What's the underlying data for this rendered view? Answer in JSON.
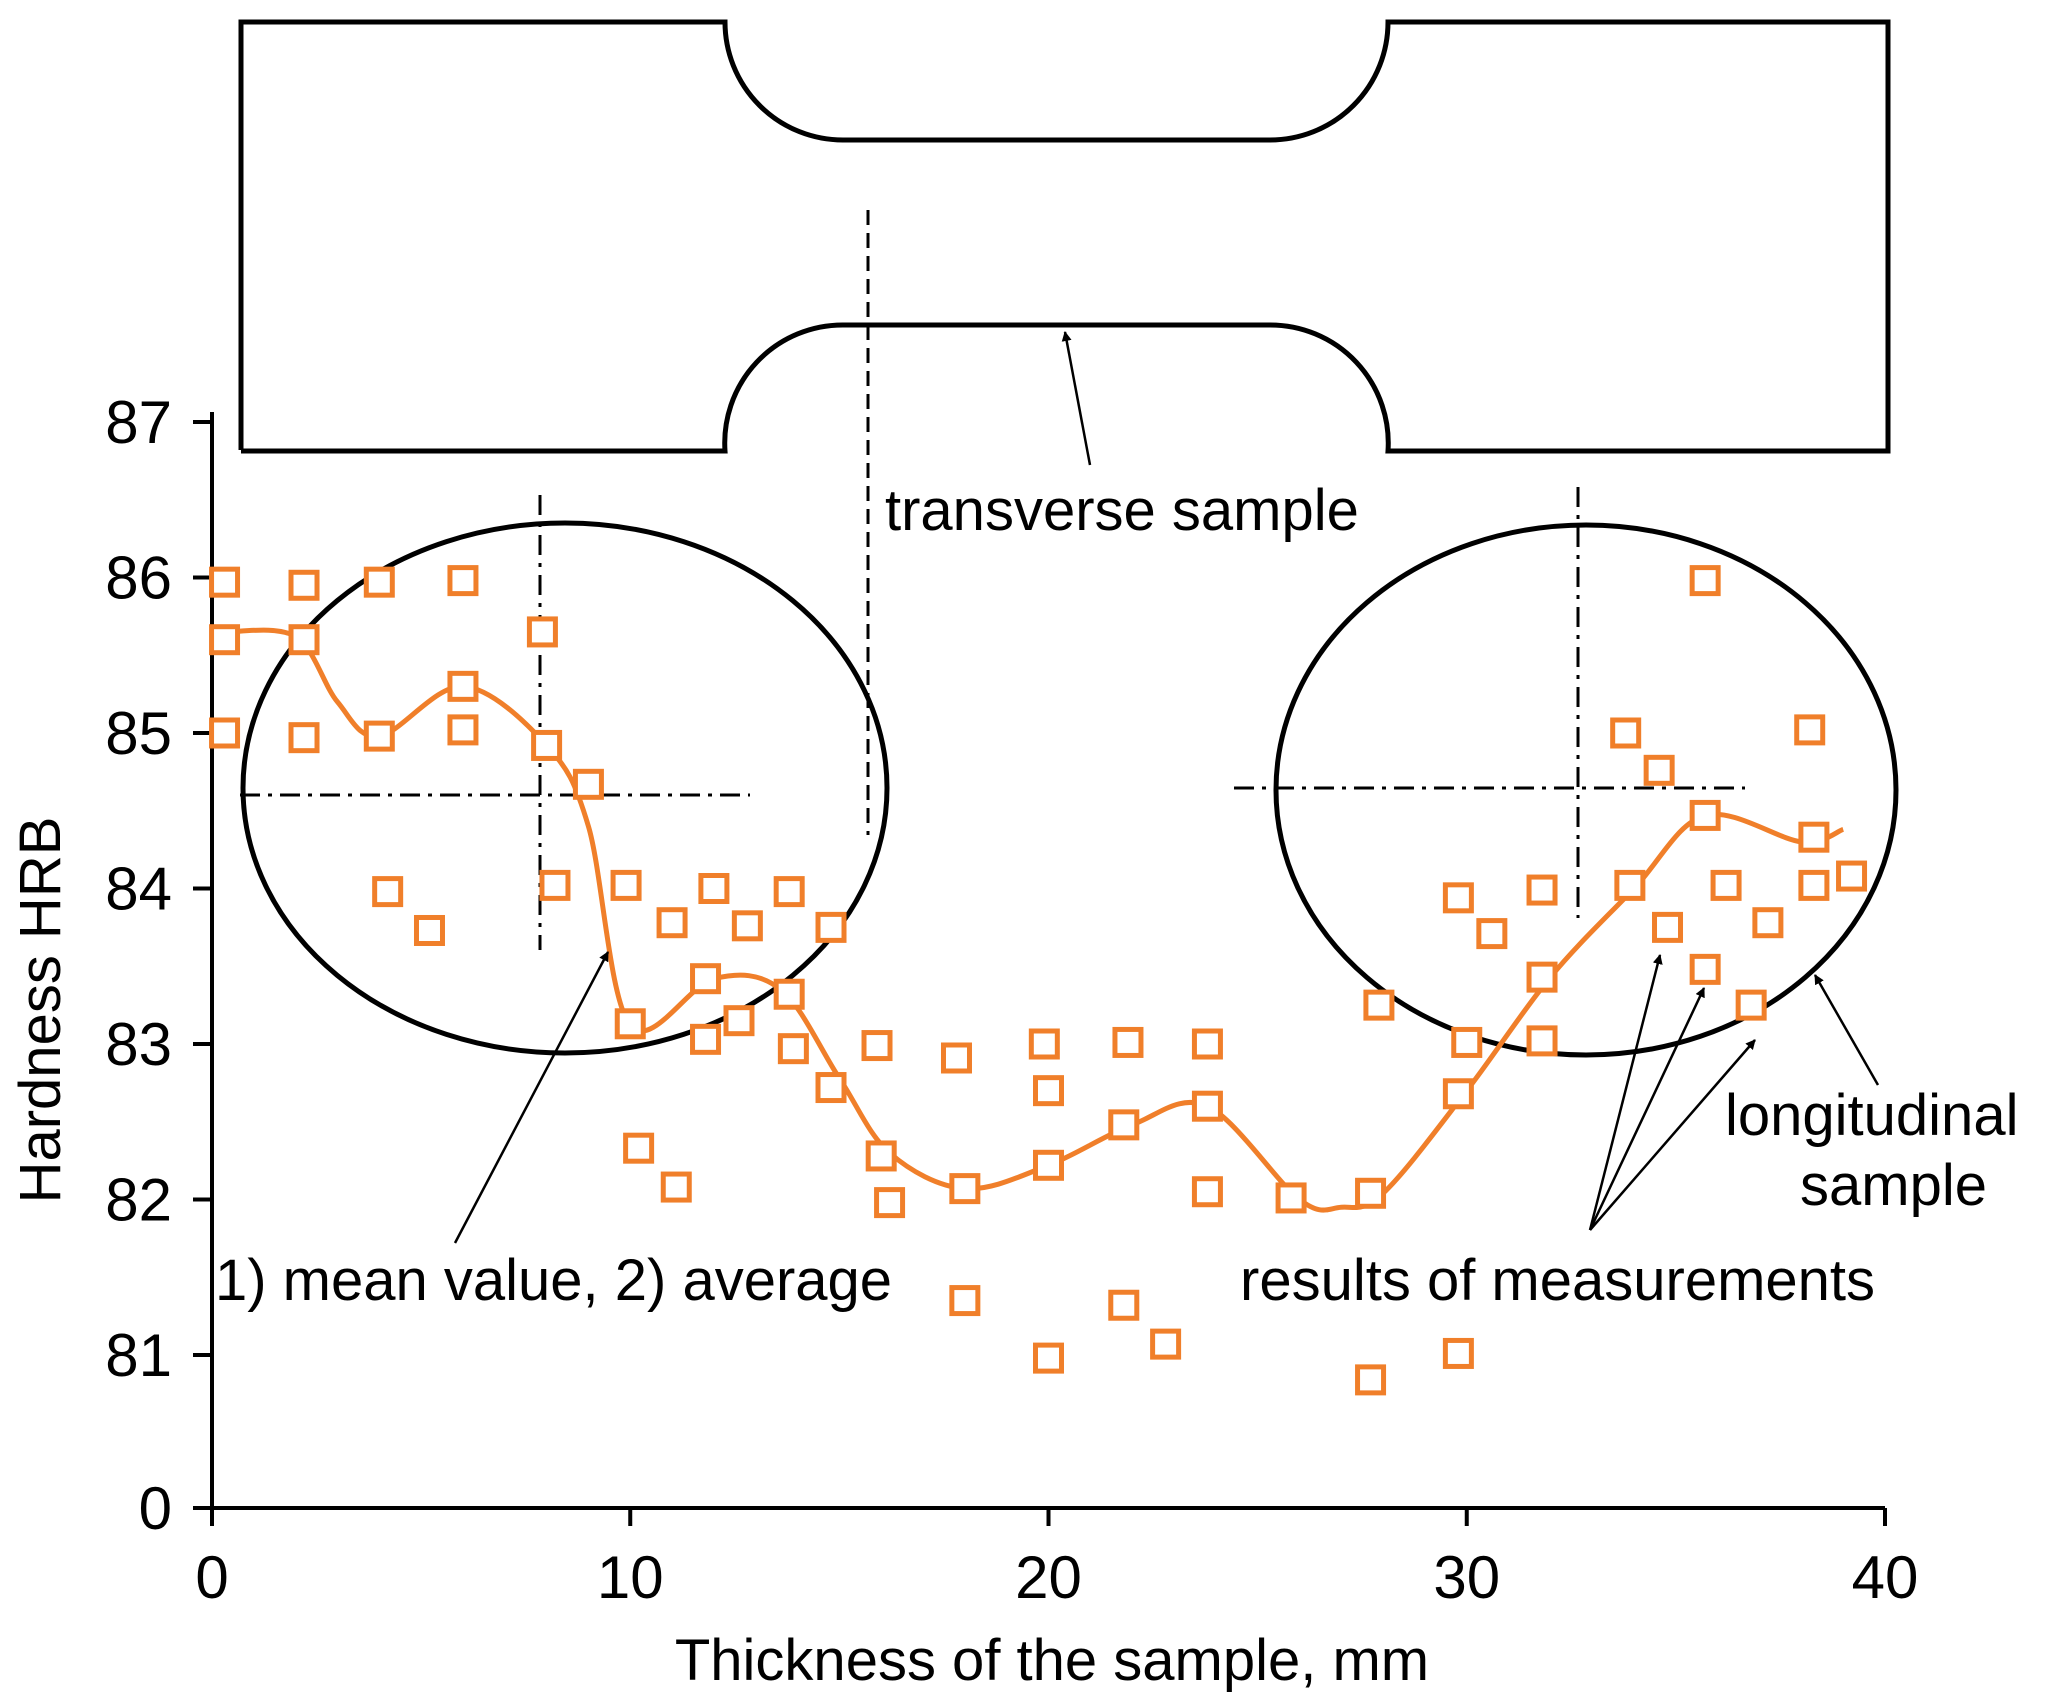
{
  "chart_data": {
    "type": "scatter",
    "title": "",
    "xlabel": "Thickness of the sample, mm",
    "ylabel": "Hardness HRB",
    "xlim": [
      0,
      40
    ],
    "x_ticks": [
      "0",
      "10",
      "20",
      "30",
      "40"
    ],
    "y_ticks": [
      "0",
      "81",
      "82",
      "83",
      "84",
      "85",
      "86",
      "87"
    ],
    "y_axis_break": "scale runs 81–87 with 0 at the origin",
    "grid": false,
    "colors": {
      "series": "#f07f2a",
      "ink": "#000000"
    },
    "series": [
      {
        "name": "results of measurements",
        "marker": "hollow-square",
        "points": [
          [
            0.3,
            85.97
          ],
          [
            0.3,
            85.6
          ],
          [
            0.3,
            85.0
          ],
          [
            2.2,
            85.95
          ],
          [
            2.2,
            85.6
          ],
          [
            2.2,
            84.97
          ],
          [
            4.0,
            85.97
          ],
          [
            4.0,
            84.98
          ],
          [
            4.2,
            83.98
          ],
          [
            5.2,
            83.73
          ],
          [
            6.0,
            85.98
          ],
          [
            6.0,
            85.3
          ],
          [
            6.0,
            85.02
          ],
          [
            7.9,
            85.65
          ],
          [
            8.0,
            84.92
          ],
          [
            8.2,
            84.02
          ],
          [
            9.0,
            84.67
          ],
          [
            9.9,
            84.02
          ],
          [
            10.0,
            83.13
          ],
          [
            10.2,
            82.33
          ],
          [
            11.0,
            83.78
          ],
          [
            11.1,
            82.08
          ],
          [
            11.8,
            83.42
          ],
          [
            11.8,
            83.03
          ],
          [
            12.0,
            84.0
          ],
          [
            12.6,
            83.15
          ],
          [
            12.8,
            83.76
          ],
          [
            13.8,
            83.98
          ],
          [
            13.8,
            83.32
          ],
          [
            13.9,
            82.97
          ],
          [
            14.8,
            83.75
          ],
          [
            14.8,
            82.72
          ],
          [
            15.9,
            82.99
          ],
          [
            16.0,
            82.28
          ],
          [
            16.2,
            81.98
          ],
          [
            17.8,
            82.91
          ],
          [
            18.0,
            82.07
          ],
          [
            18.0,
            81.35
          ],
          [
            19.9,
            83.0
          ],
          [
            20.0,
            82.7
          ],
          [
            20.0,
            82.22
          ],
          [
            20.0,
            80.98
          ],
          [
            21.8,
            82.48
          ],
          [
            21.9,
            83.01
          ],
          [
            21.8,
            81.32
          ],
          [
            22.8,
            81.07
          ],
          [
            23.8,
            83.0
          ],
          [
            23.8,
            82.6
          ],
          [
            23.8,
            82.05
          ],
          [
            25.8,
            82.01
          ],
          [
            27.7,
            82.04
          ],
          [
            27.9,
            83.25
          ],
          [
            27.7,
            80.84
          ],
          [
            29.8,
            83.94
          ],
          [
            29.8,
            82.68
          ],
          [
            30.0,
            83.01
          ],
          [
            29.8,
            81.01
          ],
          [
            30.6,
            83.71
          ],
          [
            31.8,
            83.99
          ],
          [
            31.8,
            83.43
          ],
          [
            31.8,
            83.02
          ],
          [
            33.8,
            85.0
          ],
          [
            33.9,
            84.02
          ],
          [
            34.6,
            84.76
          ],
          [
            34.8,
            83.75
          ],
          [
            35.7,
            85.98
          ],
          [
            35.7,
            84.47
          ],
          [
            35.7,
            83.48
          ],
          [
            36.2,
            84.02
          ],
          [
            36.8,
            83.25
          ],
          [
            37.2,
            83.78
          ],
          [
            38.2,
            85.02
          ],
          [
            38.3,
            84.33
          ],
          [
            38.3,
            84.02
          ],
          [
            39.2,
            84.08
          ]
        ]
      },
      {
        "name": "average",
        "marker": "none",
        "style": "smooth-line",
        "points": [
          [
            0.3,
            85.65
          ],
          [
            2.0,
            85.62
          ],
          [
            3.0,
            85.2
          ],
          [
            4.0,
            84.98
          ],
          [
            6.0,
            85.3
          ],
          [
            8.0,
            84.92
          ],
          [
            9.0,
            84.4
          ],
          [
            10.0,
            83.12
          ],
          [
            12.0,
            83.42
          ],
          [
            13.6,
            83.35
          ],
          [
            15.0,
            82.78
          ],
          [
            16.2,
            82.3
          ],
          [
            18.0,
            82.07
          ],
          [
            20.0,
            82.22
          ],
          [
            22.0,
            82.48
          ],
          [
            23.8,
            82.6
          ],
          [
            26.0,
            82.0
          ],
          [
            27.0,
            81.95
          ],
          [
            28.0,
            82.04
          ],
          [
            30.0,
            82.7
          ],
          [
            32.0,
            83.43
          ],
          [
            34.0,
            84.0
          ],
          [
            35.7,
            84.47
          ],
          [
            38.0,
            84.3
          ],
          [
            39.0,
            84.38
          ]
        ]
      }
    ],
    "annotations": {
      "transverse": "transverse sample",
      "longitudinal_line1": "longitudinal",
      "longitudinal_line2": "sample",
      "measurements": "results of measurements",
      "mean": "1) mean value, 2) average"
    }
  }
}
